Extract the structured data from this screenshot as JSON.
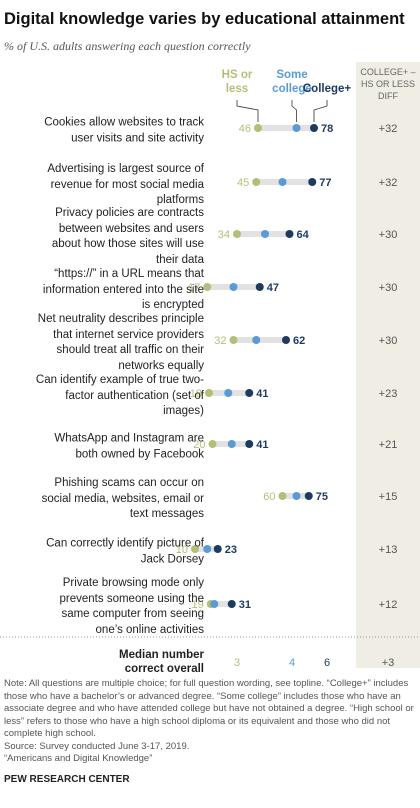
{
  "chart_data": {
    "type": "dot",
    "title": "Digital knowledge varies by educational attainment",
    "subtitle": "% of U.S. adults answering each question correctly",
    "categories": [
      "Cookies allow websites to track user visits and site activity",
      "Advertising is largest source of revenue for most social media platforms",
      "Privacy policies are contracts between websites and users about how those sites will use their data",
      "“https://” in a URL means that information entered into the site is encrypted",
      "Net neutrality describes principle that internet service providers should treat all traffic on their networks equally",
      "Can identify example of true two-factor authentication (set of images)",
      "WhatsApp and Instagram are both owned by Facebook",
      "Phishing scams can occur on social media, websites, email or text messages",
      "Can correctly identify picture of Jack Dorsey",
      "Private browsing mode only prevents someone using the same computer from seeing one’s online activities"
    ],
    "series": [
      {
        "name": "HS or less",
        "color": "#b3bf78",
        "show_labels": true,
        "values": [
          46,
          45,
          34,
          17,
          32,
          18,
          20,
          60,
          10,
          19
        ],
        "median": 3
      },
      {
        "name": "Some college",
        "color": "#5b9bd5",
        "show_labels": false,
        "values": [
          68,
          60,
          50,
          32,
          45,
          29,
          31,
          68,
          17,
          21
        ],
        "median": 4
      },
      {
        "name": "College+",
        "color": "#1d3a5f",
        "show_labels": true,
        "values": [
          78,
          77,
          64,
          47,
          62,
          41,
          41,
          75,
          23,
          31
        ],
        "median": 6
      }
    ],
    "difference": {
      "name": "COLLEGE+ – HS OR LESS DIFF",
      "values": [
        32,
        32,
        30,
        30,
        30,
        23,
        21,
        15,
        13,
        12
      ],
      "value_labels": [
        "+32",
        "+32",
        "+30",
        "+30",
        "+30",
        "+23",
        "+21",
        "+15",
        "+13",
        "+12"
      ],
      "median": 3,
      "median_label": "+3"
    },
    "median_label": "Median number correct overall",
    "xlim": [
      0,
      100
    ],
    "note": "Note: All questions are multiple choice; for full question wording, see topline. “College+” includes those who have a bachelor’s or advanced degree. “Some college” includes those who have an associate degree and who have attended college but have not obtained a degree. “High school or less” refers to those who have a high school diploma or its equivalent and those who did not complete high school.",
    "source": "Source: Survey conducted June 3-17, 2019.",
    "report": "“Americans and Digital Knowledge”",
    "footer": "PEW RESEARCH CENTER"
  }
}
